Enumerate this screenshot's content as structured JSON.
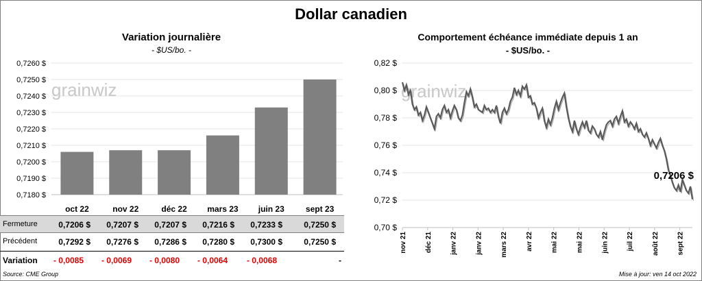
{
  "title": "Dollar canadien",
  "left": {
    "title": "Variation  journalière",
    "unit": "- $US/bo. -",
    "watermark": "grainwiz"
  },
  "right": {
    "title": "Comportement échéance immédiate depuis 1 an",
    "unit": "- $US/bo. -",
    "watermark": "grainwiz",
    "last_label": "0,7206 $"
  },
  "table": {
    "rows": [
      {
        "label": "Fermeture",
        "values": [
          "0,7206  $",
          "0,7207  $",
          "0,7207  $",
          "0,7216  $",
          "0,7233  $",
          "0,7250  $"
        ]
      },
      {
        "label": "Précédent",
        "values": [
          "0,7292  $",
          "0,7276  $",
          "0,7286  $",
          "0,7280  $",
          "0,7300  $",
          "0,7250  $"
        ]
      },
      {
        "label": "Variation",
        "values": [
          "- 0,0085",
          "- 0,0069",
          "- 0,0080",
          "- 0,0064",
          "- 0,0068",
          "-"
        ]
      }
    ]
  },
  "footer": {
    "source": "Source: CME Group",
    "updated": "Mise à jour: ven 14 oct 2022"
  },
  "chart_data": [
    {
      "type": "bar",
      "title": "Variation  journalière",
      "subtitle": "- $US/bo. -",
      "categories": [
        "oct 22",
        "nov 22",
        "déc 22",
        "mars 23",
        "juin 23",
        "sept 23"
      ],
      "values": [
        0.7206,
        0.7207,
        0.7207,
        0.7216,
        0.7233,
        0.725
      ],
      "ylim": [
        0.718,
        0.726
      ],
      "yticks": [
        0.718,
        0.719,
        0.72,
        0.721,
        0.722,
        0.723,
        0.724,
        0.725,
        0.726
      ],
      "ytick_labels": [
        "0,7180 $",
        "0,7190 $",
        "0,7200 $",
        "0,7210 $",
        "0,7220 $",
        "0,7230 $",
        "0,7240 $",
        "0,7250 $",
        "0,7260 $"
      ],
      "color": "#808080"
    },
    {
      "type": "line",
      "title": "Comportement échéance immédiate depuis 1 an",
      "subtitle": "- $US/bo. -",
      "x_tick_labels": [
        "nov 21",
        "déc 21",
        "janv 22",
        "janv 22",
        "mars 22",
        "avr 22",
        "mai 22",
        "mai 22",
        "juin 22",
        "juil 22",
        "août 22",
        "sept 22"
      ],
      "ylim": [
        0.7,
        0.82
      ],
      "yticks": [
        0.7,
        0.72,
        0.74,
        0.76,
        0.78,
        0.8,
        0.82
      ],
      "ytick_labels": [
        "0,70 $",
        "0,72 $",
        "0,74 $",
        "0,76 $",
        "0,78 $",
        "0,80 $",
        "0,82 $"
      ],
      "values": [
        0.806,
        0.8,
        0.804,
        0.797,
        0.8,
        0.79,
        0.786,
        0.788,
        0.782,
        0.784,
        0.778,
        0.782,
        0.788,
        0.784,
        0.78,
        0.776,
        0.772,
        0.781,
        0.783,
        0.78,
        0.786,
        0.789,
        0.784,
        0.786,
        0.78,
        0.785,
        0.789,
        0.786,
        0.78,
        0.778,
        0.782,
        0.791,
        0.799,
        0.796,
        0.801,
        0.795,
        0.788,
        0.79,
        0.786,
        0.785,
        0.784,
        0.789,
        0.786,
        0.787,
        0.784,
        0.786,
        0.784,
        0.789,
        0.781,
        0.776,
        0.784,
        0.787,
        0.783,
        0.786,
        0.792,
        0.795,
        0.802,
        0.797,
        0.8,
        0.796,
        0.803,
        0.801,
        0.804,
        0.795,
        0.796,
        0.79,
        0.791,
        0.787,
        0.78,
        0.784,
        0.787,
        0.778,
        0.773,
        0.779,
        0.775,
        0.78,
        0.787,
        0.792,
        0.786,
        0.791,
        0.795,
        0.798,
        0.788,
        0.78,
        0.774,
        0.77,
        0.778,
        0.772,
        0.768,
        0.773,
        0.777,
        0.773,
        0.778,
        0.771,
        0.769,
        0.774,
        0.772,
        0.768,
        0.766,
        0.77,
        0.764,
        0.77,
        0.775,
        0.777,
        0.778,
        0.774,
        0.779,
        0.781,
        0.776,
        0.781,
        0.785,
        0.777,
        0.779,
        0.774,
        0.777,
        0.775,
        0.772,
        0.776,
        0.77,
        0.772,
        0.768,
        0.766,
        0.769,
        0.765,
        0.76,
        0.764,
        0.761,
        0.758,
        0.762,
        0.765,
        0.76,
        0.756,
        0.75,
        0.742,
        0.738,
        0.733,
        0.729,
        0.727,
        0.731,
        0.726,
        0.735,
        0.731,
        0.727,
        0.725,
        0.73,
        0.7206
      ],
      "last_value": 0.7206,
      "color": "#595959"
    }
  ]
}
